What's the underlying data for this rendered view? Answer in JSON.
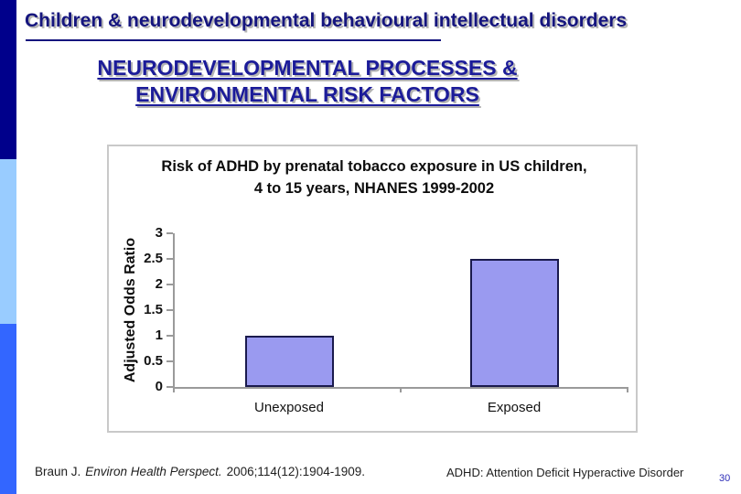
{
  "slide": {
    "title": "Children & neurodevelopmental behavioural intellectual disorders",
    "subtitle_line1": "NEURODEVELOPMENTAL PROCESSES &",
    "subtitle_line2": "ENVIRONMENTAL RISK FACTORS",
    "citation": {
      "author": "Braun J.",
      "journal": "Environ Health Perspect.",
      "rest": "2006;114(12):1904-1909."
    },
    "footnote": "ADHD: Attention Deficit Hyperactive Disorder",
    "page_number": "30",
    "colors": {
      "title_text": "#15157e",
      "subtitle_text": "#1c1c99",
      "accent_bar_segments": [
        "#00008b",
        "#99ccff",
        "#3366ff"
      ],
      "page_number_text": "#2e2eb8"
    }
  },
  "chart_data": {
    "type": "bar",
    "title": "Risk of ADHD by prenatal tobacco exposure in US children, 4 to 15 years, NHANES 1999-2002",
    "categories": [
      "Unexposed",
      "Exposed"
    ],
    "values": [
      1.0,
      2.5
    ],
    "xlabel": "",
    "ylabel": "Adjusted Odds Ratio",
    "ylim": [
      0,
      3
    ],
    "yticks": [
      0,
      0.5,
      1,
      1.5,
      2,
      2.5,
      3
    ],
    "grid": false,
    "legend": "none",
    "bar_color": "#9a9af0",
    "bar_border_color": "#1a1a4d",
    "axis_color": "#9a9a9a"
  }
}
